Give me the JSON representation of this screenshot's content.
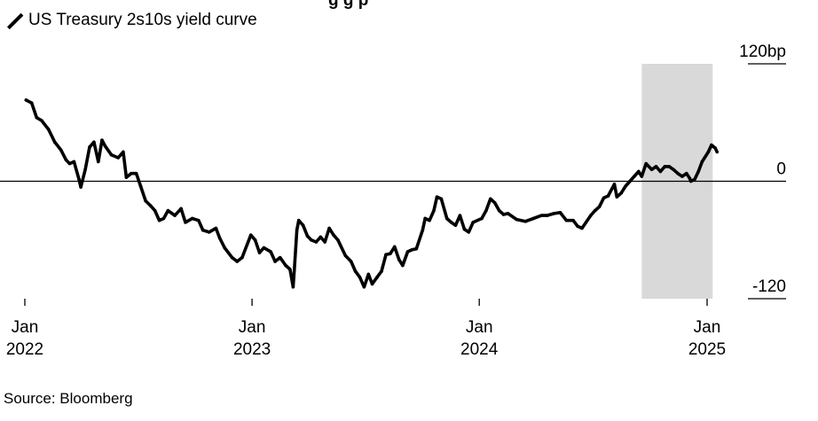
{
  "title_fragment": "g             g  p",
  "legend": {
    "label": "US Treasury 2s10s yield curve",
    "icon": "diagonal-line-icon"
  },
  "source": "Source: Bloomberg",
  "colors": {
    "line": "#000000",
    "shade": "#d9d9d9",
    "zero_line": "#000000"
  },
  "chart_data": {
    "type": "line",
    "title": "",
    "xlabel": "",
    "ylabel": "",
    "ylim": [
      -120,
      120
    ],
    "y_ticks": [
      {
        "value": 120,
        "label": "120bp"
      },
      {
        "value": 0,
        "label": "0"
      },
      {
        "value": -120,
        "label": "-120"
      }
    ],
    "x_ticks": [
      {
        "value": "2022-01-01",
        "label_month": "Jan",
        "label_year": "2022"
      },
      {
        "value": "2023-01-01",
        "label_month": "Jan",
        "label_year": "2023"
      },
      {
        "value": "2024-01-01",
        "label_month": "Jan",
        "label_year": "2024"
      },
      {
        "value": "2025-01-01",
        "label_month": "Jan",
        "label_year": "2025"
      }
    ],
    "shaded_range": [
      "2024-09-18",
      "2025-01-10"
    ],
    "zero_line": true,
    "series": [
      {
        "name": "US Treasury 2s10s yield curve",
        "points": [
          [
            "2022-01-03",
            83
          ],
          [
            "2022-01-12",
            80
          ],
          [
            "2022-01-20",
            65
          ],
          [
            "2022-01-28",
            62
          ],
          [
            "2022-02-08",
            53
          ],
          [
            "2022-02-18",
            40
          ],
          [
            "2022-02-28",
            32
          ],
          [
            "2022-03-08",
            22
          ],
          [
            "2022-03-14",
            18
          ],
          [
            "2022-03-21",
            20
          ],
          [
            "2022-03-29",
            2
          ],
          [
            "2022-04-01",
            -6
          ],
          [
            "2022-04-08",
            12
          ],
          [
            "2022-04-15",
            35
          ],
          [
            "2022-04-22",
            40
          ],
          [
            "2022-04-29",
            20
          ],
          [
            "2022-05-05",
            42
          ],
          [
            "2022-05-10",
            36
          ],
          [
            "2022-05-20",
            27
          ],
          [
            "2022-05-31",
            24
          ],
          [
            "2022-06-08",
            30
          ],
          [
            "2022-06-13",
            4
          ],
          [
            "2022-06-21",
            8
          ],
          [
            "2022-06-29",
            8
          ],
          [
            "2022-07-06",
            -5
          ],
          [
            "2022-07-14",
            -20
          ],
          [
            "2022-07-22",
            -25
          ],
          [
            "2022-07-29",
            -30
          ],
          [
            "2022-08-05",
            -40
          ],
          [
            "2022-08-12",
            -38
          ],
          [
            "2022-08-19",
            -30
          ],
          [
            "2022-08-30",
            -35
          ],
          [
            "2022-09-09",
            -28
          ],
          [
            "2022-09-16",
            -42
          ],
          [
            "2022-09-27",
            -38
          ],
          [
            "2022-10-07",
            -40
          ],
          [
            "2022-10-14",
            -50
          ],
          [
            "2022-10-24",
            -52
          ],
          [
            "2022-11-04",
            -48
          ],
          [
            "2022-11-10",
            -58
          ],
          [
            "2022-11-18",
            -68
          ],
          [
            "2022-11-30",
            -78
          ],
          [
            "2022-12-08",
            -82
          ],
          [
            "2022-12-16",
            -78
          ],
          [
            "2022-12-30",
            -55
          ],
          [
            "2023-01-06",
            -60
          ],
          [
            "2023-01-13",
            -73
          ],
          [
            "2023-01-20",
            -68
          ],
          [
            "2023-01-31",
            -72
          ],
          [
            "2023-02-07",
            -82
          ],
          [
            "2023-02-15",
            -78
          ],
          [
            "2023-02-24",
            -86
          ],
          [
            "2023-03-03",
            -90
          ],
          [
            "2023-03-08",
            -108
          ],
          [
            "2023-03-10",
            -90
          ],
          [
            "2023-03-14",
            -50
          ],
          [
            "2023-03-17",
            -40
          ],
          [
            "2023-03-24",
            -45
          ],
          [
            "2023-03-31",
            -56
          ],
          [
            "2023-04-06",
            -60
          ],
          [
            "2023-04-14",
            -62
          ],
          [
            "2023-04-21",
            -57
          ],
          [
            "2023-04-28",
            -62
          ],
          [
            "2023-05-05",
            -48
          ],
          [
            "2023-05-12",
            -55
          ],
          [
            "2023-05-19",
            -60
          ],
          [
            "2023-05-31",
            -76
          ],
          [
            "2023-06-09",
            -82
          ],
          [
            "2023-06-16",
            -92
          ],
          [
            "2023-06-23",
            -98
          ],
          [
            "2023-06-30",
            -108
          ],
          [
            "2023-07-07",
            -95
          ],
          [
            "2023-07-13",
            -105
          ],
          [
            "2023-07-21",
            -98
          ],
          [
            "2023-07-28",
            -92
          ],
          [
            "2023-08-04",
            -75
          ],
          [
            "2023-08-11",
            -74
          ],
          [
            "2023-08-18",
            -67
          ],
          [
            "2023-08-25",
            -80
          ],
          [
            "2023-08-31",
            -86
          ],
          [
            "2023-09-08",
            -72
          ],
          [
            "2023-09-15",
            -70
          ],
          [
            "2023-09-22",
            -69
          ],
          [
            "2023-10-02",
            -50
          ],
          [
            "2023-10-06",
            -38
          ],
          [
            "2023-10-13",
            -40
          ],
          [
            "2023-10-20",
            -30
          ],
          [
            "2023-10-25",
            -16
          ],
          [
            "2023-11-01",
            -18
          ],
          [
            "2023-11-10",
            -38
          ],
          [
            "2023-11-17",
            -42
          ],
          [
            "2023-11-24",
            -45
          ],
          [
            "2023-12-01",
            -35
          ],
          [
            "2023-12-08",
            -49
          ],
          [
            "2023-12-15",
            -52
          ],
          [
            "2023-12-22",
            -42
          ],
          [
            "2024-01-05",
            -38
          ],
          [
            "2024-01-12",
            -30
          ],
          [
            "2024-01-19",
            -18
          ],
          [
            "2024-01-26",
            -22
          ],
          [
            "2024-02-02",
            -30
          ],
          [
            "2024-02-09",
            -34
          ],
          [
            "2024-02-16",
            -33
          ],
          [
            "2024-03-01",
            -39
          ],
          [
            "2024-03-15",
            -41
          ],
          [
            "2024-03-28",
            -38
          ],
          [
            "2024-04-10",
            -35
          ],
          [
            "2024-04-19",
            -35
          ],
          [
            "2024-04-30",
            -33
          ],
          [
            "2024-05-10",
            -32
          ],
          [
            "2024-05-20",
            -40
          ],
          [
            "2024-05-31",
            -40
          ],
          [
            "2024-06-07",
            -46
          ],
          [
            "2024-06-14",
            -48
          ],
          [
            "2024-06-28",
            -35
          ],
          [
            "2024-07-05",
            -30
          ],
          [
            "2024-07-12",
            -26
          ],
          [
            "2024-07-19",
            -17
          ],
          [
            "2024-07-26",
            -15
          ],
          [
            "2024-08-05",
            -3
          ],
          [
            "2024-08-09",
            -16
          ],
          [
            "2024-08-16",
            -12
          ],
          [
            "2024-08-23",
            -5
          ],
          [
            "2024-08-30",
            0
          ],
          [
            "2024-09-06",
            5
          ],
          [
            "2024-09-13",
            10
          ],
          [
            "2024-09-18",
            5
          ],
          [
            "2024-09-25",
            18
          ],
          [
            "2024-10-04",
            12
          ],
          [
            "2024-10-11",
            15
          ],
          [
            "2024-10-18",
            10
          ],
          [
            "2024-10-25",
            15
          ],
          [
            "2024-11-01",
            15
          ],
          [
            "2024-11-08",
            12
          ],
          [
            "2024-11-15",
            8
          ],
          [
            "2024-11-22",
            5
          ],
          [
            "2024-11-29",
            8
          ],
          [
            "2024-12-04",
            3
          ],
          [
            "2024-12-06",
            0
          ],
          [
            "2024-12-12",
            2
          ],
          [
            "2024-12-18",
            10
          ],
          [
            "2024-12-24",
            20
          ],
          [
            "2025-01-03",
            30
          ],
          [
            "2025-01-08",
            37
          ],
          [
            "2025-01-10",
            36
          ],
          [
            "2025-01-14",
            34
          ],
          [
            "2025-01-17",
            30
          ]
        ]
      }
    ]
  }
}
